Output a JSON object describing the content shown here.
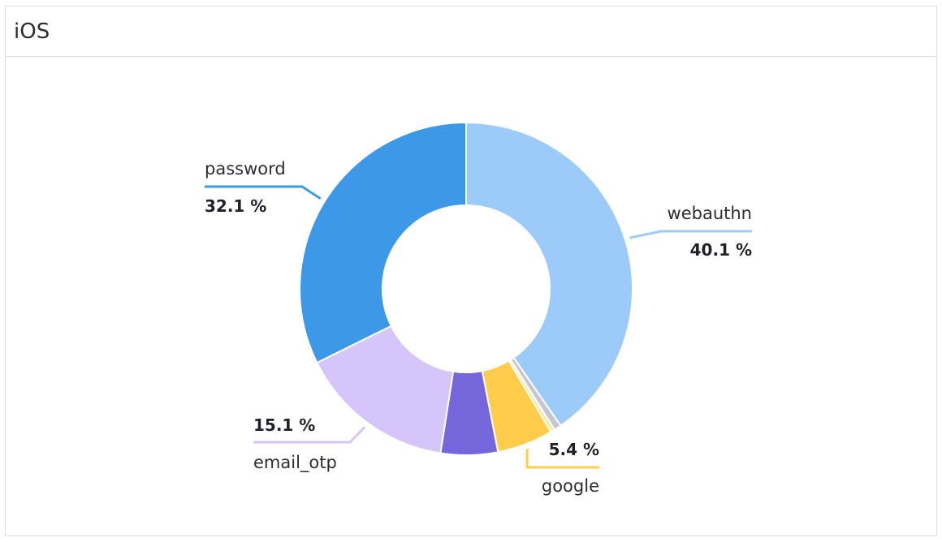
{
  "panel": {
    "title": "iOS"
  },
  "chart_data": {
    "type": "pie",
    "donut": true,
    "series": [
      {
        "name": "webauthn",
        "value": 40.1,
        "color": "#9ccbfa",
        "label_pct": "40.1 %",
        "labeled": true
      },
      {
        "name": "",
        "value": 0.7,
        "color": "#c3c6d6",
        "labeled": false
      },
      {
        "name": "",
        "value": 0.4,
        "color": "#fbe99b",
        "labeled": false
      },
      {
        "name": "google",
        "value": 5.4,
        "color": "#ffcd4b",
        "label_pct": "5.4 %",
        "labeled": true
      },
      {
        "name": "",
        "value": 5.5,
        "color": "#7566dc",
        "labeled": false
      },
      {
        "name": "email_otp",
        "value": 15.1,
        "color": "#d6c5fb",
        "label_pct": "15.1 %",
        "labeled": true
      },
      {
        "name": "password",
        "value": 32.1,
        "color": "#3d99e8",
        "label_pct": "32.1 %",
        "labeled": true
      }
    ]
  }
}
